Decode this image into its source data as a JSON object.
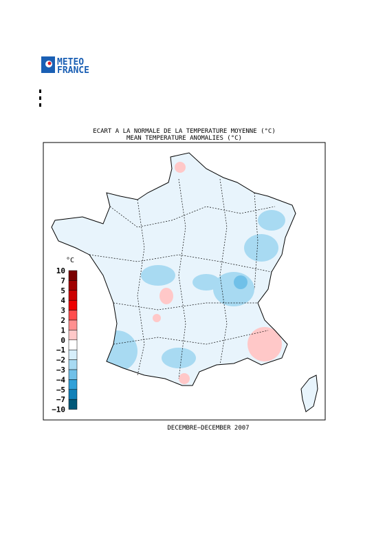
{
  "logo": {
    "line1": "METEO",
    "line2": "FRANCE"
  },
  "title": "ECART A LA NORMALE DE LA TEMPERATURE MOYENNE (°C)",
  "subtitle": "MEAN TEMPERATURE ANOMALIES (°C)",
  "legend": {
    "unit": "°C",
    "labels": [
      "10",
      "7",
      "5",
      "4",
      "3",
      "2",
      "1",
      "0",
      "−1",
      "−2",
      "−3",
      "−4",
      "−5",
      "−7",
      "−10"
    ],
    "colors": [
      "#7a0000",
      "#a00000",
      "#cc0000",
      "#ee0000",
      "#ff4d4d",
      "#ff9090",
      "#ffc8c8",
      "#ffffff",
      "#d6eefa",
      "#a8daf2",
      "#70c0e8",
      "#30a0d8",
      "#1080b8",
      "#005878"
    ]
  },
  "period": "DECEMBRE−DECEMBER 2007"
}
